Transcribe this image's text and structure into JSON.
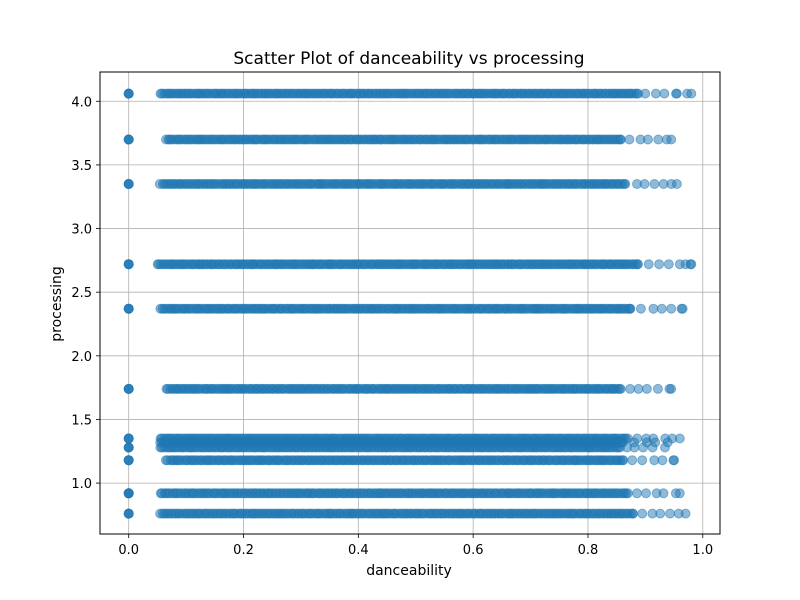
{
  "chart_data": {
    "type": "scatter",
    "title": "Scatter Plot of danceability vs processing",
    "xlabel": "danceability",
    "ylabel": "processing",
    "xlim": [
      -0.05,
      1.03
    ],
    "ylim": [
      0.6,
      4.23
    ],
    "xticks": [
      0.0,
      0.2,
      0.4,
      0.6,
      0.8,
      1.0
    ],
    "xtick_labels": [
      "0.0",
      "0.2",
      "0.4",
      "0.6",
      "0.8",
      "1.0"
    ],
    "yticks": [
      1.0,
      1.5,
      2.0,
      2.5,
      3.0,
      3.5,
      4.0
    ],
    "ytick_labels": [
      "1.0",
      "1.5",
      "2.0",
      "2.5",
      "3.0",
      "3.5",
      "4.0"
    ],
    "grid": true,
    "marker_color": "#1f77b4",
    "marker_alpha": 0.5,
    "series": [
      {
        "bands": [
          {
            "y": 4.06,
            "x_zero": true,
            "x_min": 0.055,
            "x_max": 0.98
          },
          {
            "y": 3.7,
            "x_zero": true,
            "x_min": 0.065,
            "x_max": 0.945
          },
          {
            "y": 3.35,
            "x_zero": true,
            "x_min": 0.055,
            "x_max": 0.955
          },
          {
            "y": 2.72,
            "x_zero": true,
            "x_min": 0.05,
            "x_max": 0.98
          },
          {
            "y": 2.37,
            "x_zero": true,
            "x_min": 0.055,
            "x_max": 0.965
          },
          {
            "y": 1.74,
            "x_zero": true,
            "x_min": 0.065,
            "x_max": 0.945
          },
          {
            "y": 1.35,
            "x_zero": true,
            "x_min": 0.055,
            "x_max": 0.96
          },
          {
            "y": 1.32,
            "x_zero": false,
            "x_min": 0.055,
            "x_max": 0.95
          },
          {
            "y": 1.28,
            "x_zero": true,
            "x_min": 0.055,
            "x_max": 0.945
          },
          {
            "y": 1.18,
            "x_zero": true,
            "x_min": 0.065,
            "x_max": 0.95
          },
          {
            "y": 0.92,
            "x_zero": true,
            "x_min": 0.055,
            "x_max": 0.96
          },
          {
            "y": 0.76,
            "x_zero": true,
            "x_min": 0.055,
            "x_max": 0.97
          }
        ],
        "isolated_points": [
          {
            "x": 0.98,
            "y": 4.06
          },
          {
            "x": 0.955,
            "y": 4.06
          },
          {
            "x": 0.945,
            "y": 3.7
          },
          {
            "x": 0.955,
            "y": 3.35
          },
          {
            "x": 0.97,
            "y": 2.72
          },
          {
            "x": 0.98,
            "y": 2.72
          },
          {
            "x": 0.965,
            "y": 2.37
          },
          {
            "x": 0.945,
            "y": 1.74
          },
          {
            "x": 0.96,
            "y": 1.35
          },
          {
            "x": 0.95,
            "y": 1.18
          },
          {
            "x": 0.96,
            "y": 0.92
          },
          {
            "x": 0.97,
            "y": 0.76
          }
        ]
      }
    ]
  }
}
